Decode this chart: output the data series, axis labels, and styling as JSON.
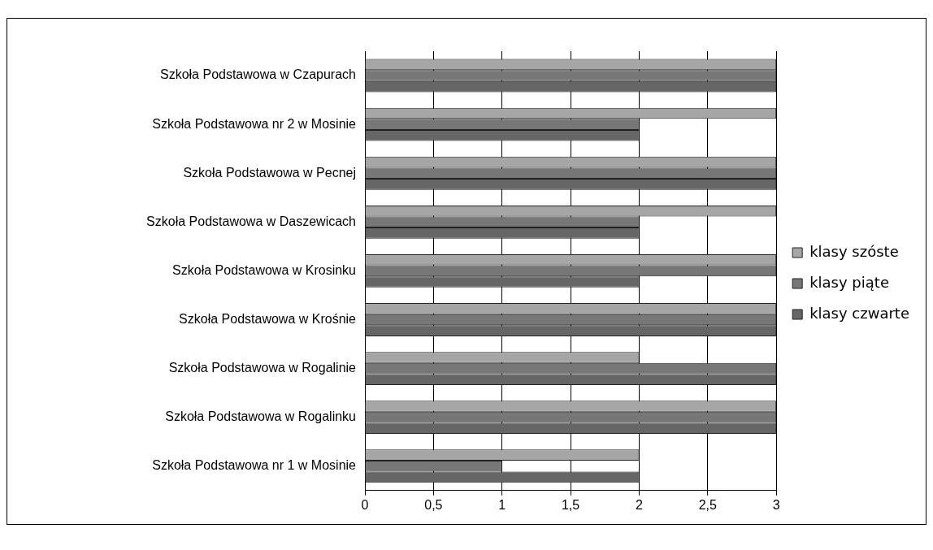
{
  "chart_data": {
    "type": "bar",
    "orientation": "horizontal",
    "categories": [
      "Szkoła Podstawowa w Czapurach",
      "Szkoła Podstawowa nr 2 w Mosinie",
      "Szkoła Podstawowa w Pecnej",
      "Szkoła Podstawowa w Daszewicach",
      "Szkoła Podstawowa w Krosinku",
      "Szkoła Podstawowa w Krośnie",
      "Szkoła Podstawowa w Rogalinie",
      "Szkoła Podstawowa w Rogalinku",
      "Szkoła Podstawowa nr 1 w Mosinie"
    ],
    "series": [
      {
        "name": "klasy szóste",
        "color": "#a6a6a6",
        "values": [
          3,
          3,
          3,
          3,
          3,
          3,
          2,
          3,
          2
        ]
      },
      {
        "name": "klasy piąte",
        "color": "#777777",
        "values": [
          3,
          2,
          3,
          2,
          3,
          3,
          3,
          3,
          1
        ]
      },
      {
        "name": "klasy czwarte",
        "color": "#666666",
        "values": [
          3,
          2,
          3,
          2,
          2,
          3,
          3,
          3,
          2
        ]
      }
    ],
    "xlim": [
      0,
      3
    ],
    "xticks": [
      0,
      {
        "value": 0.5,
        "label": "0,5"
      },
      1,
      {
        "value": 1.5,
        "label": "1,5"
      },
      2,
      {
        "value": 2.5,
        "label": "2,5"
      },
      3
    ],
    "grid": "x",
    "legend": "right"
  }
}
